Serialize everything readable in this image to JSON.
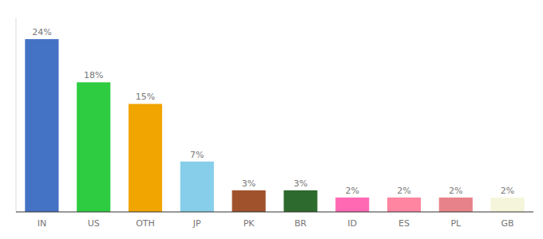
{
  "chart_data": {
    "type": "bar",
    "categories": [
      "IN",
      "US",
      "OTH",
      "JP",
      "PK",
      "BR",
      "ID",
      "ES",
      "PL",
      "GB"
    ],
    "values": [
      24,
      18,
      15,
      7,
      3,
      3,
      2,
      2,
      2,
      2
    ],
    "value_labels": [
      "24%",
      "18%",
      "15%",
      "7%",
      "3%",
      "3%",
      "2%",
      "2%",
      "2%",
      "2%"
    ],
    "colors": [
      "#4472c4",
      "#2ecc40",
      "#f0a500",
      "#87ceeb",
      "#a0522d",
      "#2d6a2d",
      "#ff69b4",
      "#ff85a1",
      "#e8828a",
      "#f5f5dc"
    ],
    "ylim": [
      0,
      27
    ],
    "data_labels": true,
    "tick_labels": "x",
    "grid": false
  }
}
